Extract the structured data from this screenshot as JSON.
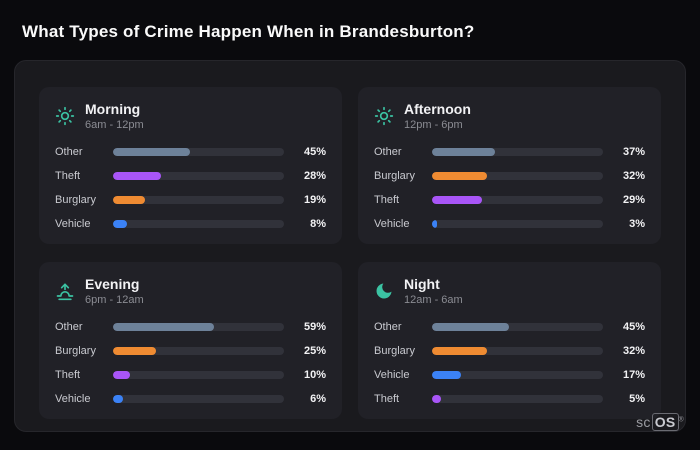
{
  "page": {
    "title": "What Types of Crime Happen When in Brandesburton?",
    "brand": {
      "prefix": "sc",
      "suffix": "OS",
      "reg": "®"
    }
  },
  "colors": {
    "icon": "#3bc3a3",
    "other": "#6d8199",
    "theft": "#a855f7",
    "burglary": "#ef8b32",
    "vehicle": "#3b82f6"
  },
  "chart_data": [
    {
      "type": "bar",
      "orientation": "horizontal",
      "name": "Morning",
      "time_range": "6am - 12pm",
      "icon": "sun-icon",
      "unit": "%",
      "xlim": [
        0,
        100
      ],
      "categories": [
        "Other",
        "Theft",
        "Burglary",
        "Vehicle"
      ],
      "values": [
        45,
        28,
        19,
        8
      ]
    },
    {
      "type": "bar",
      "orientation": "horizontal",
      "name": "Afternoon",
      "time_range": "12pm - 6pm",
      "icon": "sun-icon",
      "unit": "%",
      "xlim": [
        0,
        100
      ],
      "categories": [
        "Other",
        "Burglary",
        "Theft",
        "Vehicle"
      ],
      "values": [
        37,
        32,
        29,
        3
      ]
    },
    {
      "type": "bar",
      "orientation": "horizontal",
      "name": "Evening",
      "time_range": "6pm - 12am",
      "icon": "sunset-icon",
      "unit": "%",
      "xlim": [
        0,
        100
      ],
      "categories": [
        "Other",
        "Burglary",
        "Theft",
        "Vehicle"
      ],
      "values": [
        59,
        25,
        10,
        6
      ]
    },
    {
      "type": "bar",
      "orientation": "horizontal",
      "name": "Night",
      "time_range": "12am - 6am",
      "icon": "moon-icon",
      "unit": "%",
      "xlim": [
        0,
        100
      ],
      "categories": [
        "Other",
        "Burglary",
        "Vehicle",
        "Theft"
      ],
      "values": [
        45,
        32,
        17,
        5
      ]
    }
  ]
}
